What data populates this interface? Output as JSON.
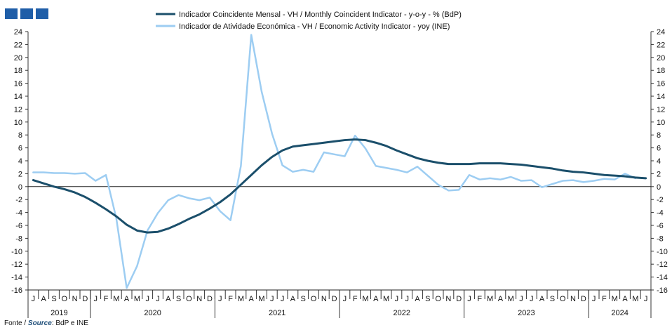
{
  "chart_data": {
    "type": "line",
    "x": [
      "2019-07",
      "2019-08",
      "2019-09",
      "2019-10",
      "2019-11",
      "2019-12",
      "2020-01",
      "2020-02",
      "2020-03",
      "2020-04",
      "2020-05",
      "2020-06",
      "2020-07",
      "2020-08",
      "2020-09",
      "2020-10",
      "2020-11",
      "2020-12",
      "2021-01",
      "2021-02",
      "2021-03",
      "2021-04",
      "2021-05",
      "2021-06",
      "2021-07",
      "2021-08",
      "2021-09",
      "2021-10",
      "2021-11",
      "2021-12",
      "2022-01",
      "2022-02",
      "2022-03",
      "2022-04",
      "2022-05",
      "2022-06",
      "2022-07",
      "2022-08",
      "2022-09",
      "2022-10",
      "2022-11",
      "2022-12",
      "2023-01",
      "2023-02",
      "2023-03",
      "2023-04",
      "2023-05",
      "2023-06",
      "2023-07",
      "2023-08",
      "2023-09",
      "2023-10",
      "2023-11",
      "2023-12",
      "2024-01",
      "2024-02",
      "2024-03",
      "2024-04",
      "2024-05",
      "2024-06"
    ],
    "month_letters": [
      "J",
      "A",
      "S",
      "O",
      "N",
      "D",
      "J",
      "F",
      "M",
      "A",
      "M",
      "J",
      "J",
      "A",
      "S",
      "O",
      "N",
      "D",
      "J",
      "F",
      "M",
      "A",
      "M",
      "J",
      "J",
      "A",
      "S",
      "O",
      "N",
      "D",
      "J",
      "F",
      "M",
      "A",
      "M",
      "J",
      "J",
      "A",
      "S",
      "O",
      "N",
      "D",
      "J",
      "F",
      "M",
      "A",
      "M",
      "J",
      "J",
      "A",
      "S",
      "O",
      "N",
      "D",
      "J",
      "F",
      "M",
      "A",
      "M",
      "J"
    ],
    "years": [
      {
        "label": "2019",
        "start": 0,
        "end": 5
      },
      {
        "label": "2020",
        "start": 6,
        "end": 17
      },
      {
        "label": "2021",
        "start": 18,
        "end": 29
      },
      {
        "label": "2022",
        "start": 30,
        "end": 41
      },
      {
        "label": "2023",
        "start": 42,
        "end": 53
      },
      {
        "label": "2024",
        "start": 54,
        "end": 59
      }
    ],
    "series": [
      {
        "name": "Indicador Coincidente Mensal - VH / Monthly Coincident Indicator - y-o-y - % (BdP)",
        "color": "#1b4f6b",
        "values": [
          1.0,
          0.5,
          0.0,
          -0.4,
          -0.9,
          -1.6,
          -2.5,
          -3.5,
          -4.6,
          -5.9,
          -6.8,
          -7.1,
          -7.0,
          -6.5,
          -5.8,
          -5.0,
          -4.3,
          -3.4,
          -2.4,
          -1.2,
          0.3,
          1.8,
          3.3,
          4.6,
          5.6,
          6.2,
          6.4,
          6.6,
          6.8,
          7.0,
          7.2,
          7.3,
          7.2,
          6.8,
          6.3,
          5.6,
          5.0,
          4.4,
          4.0,
          3.7,
          3.5,
          3.5,
          3.5,
          3.6,
          3.6,
          3.6,
          3.5,
          3.4,
          3.2,
          3.0,
          2.8,
          2.5,
          2.3,
          2.2,
          2.0,
          1.8,
          1.7,
          1.6,
          1.4,
          1.3
        ]
      },
      {
        "name": "Indicador de Atividade Económica - VH / Economic Activity Indicator - yoy (INE)",
        "color": "#9dcdf2",
        "values": [
          2.2,
          2.2,
          2.1,
          2.1,
          2.0,
          2.1,
          0.9,
          1.8,
          -4.9,
          -15.7,
          -12.3,
          -6.8,
          -4.1,
          -2.1,
          -1.3,
          -1.8,
          -2.1,
          -1.7,
          -3.8,
          -5.2,
          3.2,
          23.5,
          14.7,
          8.2,
          3.3,
          2.3,
          2.6,
          2.3,
          5.3,
          5.0,
          4.7,
          7.9,
          5.9,
          3.2,
          2.9,
          2.6,
          2.2,
          3.1,
          1.7,
          0.3,
          -0.6,
          -0.5,
          1.8,
          1.1,
          1.3,
          1.1,
          1.5,
          0.9,
          1.0,
          -0.1,
          0.4,
          0.9,
          1.0,
          0.7,
          0.9,
          1.2,
          1.1,
          2.0,
          1.3,
          null
        ]
      }
    ],
    "ylim": [
      -16,
      24
    ],
    "yticks": [
      -16,
      -14,
      -12,
      -10,
      -8,
      -6,
      -4,
      -2,
      0,
      2,
      4,
      6,
      8,
      10,
      12,
      14,
      16,
      18,
      20,
      22,
      24
    ],
    "legend_position": "top-center",
    "grid": false
  },
  "source": {
    "prefix": "Fonte / ",
    "emphasis": "Source",
    "suffix": ": BdP e INE"
  }
}
